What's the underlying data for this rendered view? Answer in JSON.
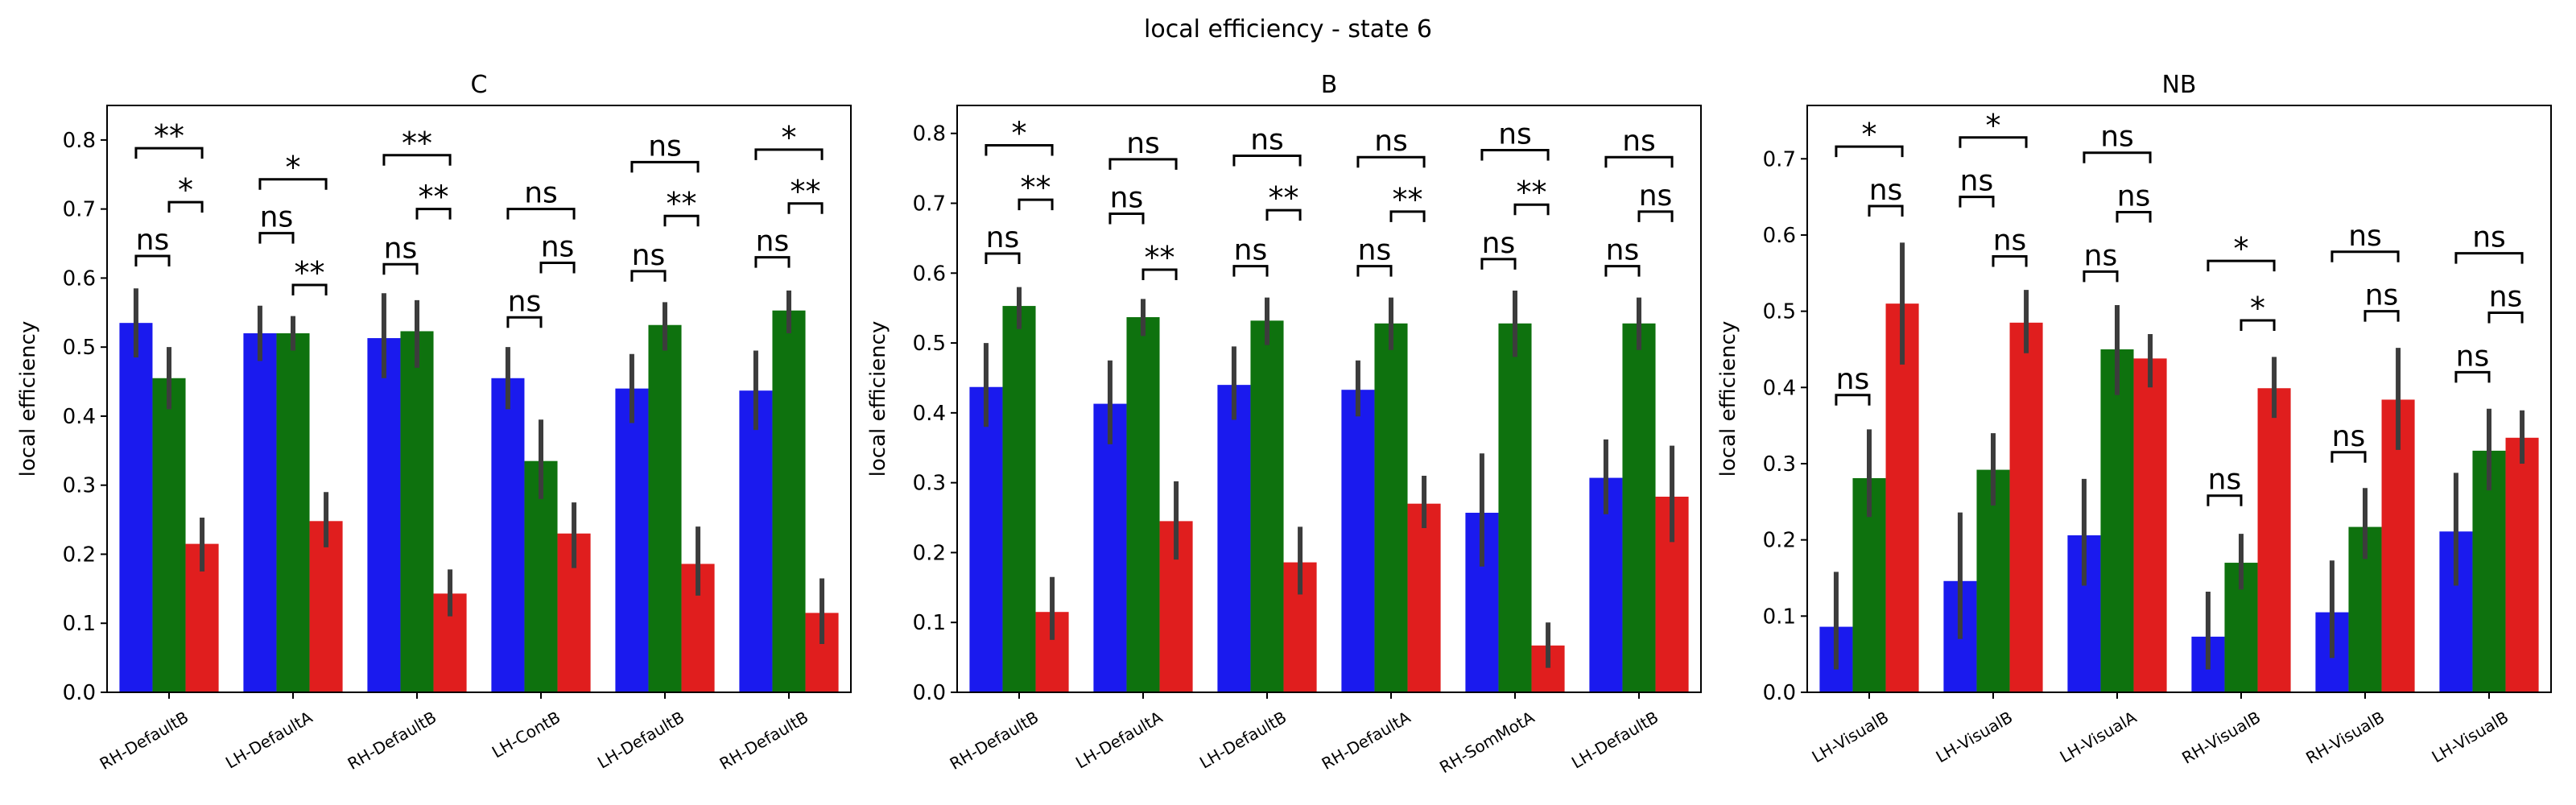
{
  "figure": {
    "title": "local efficiency - state 6"
  },
  "colors": {
    "series": [
      "#1a1aee",
      "#0e720e",
      "#e01e1e"
    ],
    "errorbar": "#3c3c3c",
    "axis": "#000000"
  },
  "chart_data": [
    {
      "type": "bar",
      "title": "C",
      "ylabel": "local efficiency",
      "ylim": [
        0,
        0.85
      ],
      "yticks": [
        0.0,
        0.1,
        0.2,
        0.3,
        0.4,
        0.5,
        0.6,
        0.7,
        0.8
      ],
      "categories": [
        "RH-DefaultB",
        "LH-DefaultA",
        "RH-DefaultB",
        "LH-ContB",
        "LH-DefaultB",
        "RH-DefaultB"
      ],
      "series": [
        {
          "values": [
            0.535,
            0.52,
            0.513,
            0.455,
            0.44,
            0.437
          ],
          "err_low": [
            0.485,
            0.48,
            0.455,
            0.41,
            0.39,
            0.38
          ],
          "err_high": [
            0.585,
            0.56,
            0.578,
            0.5,
            0.49,
            0.495
          ]
        },
        {
          "values": [
            0.455,
            0.52,
            0.523,
            0.335,
            0.532,
            0.553
          ],
          "err_low": [
            0.41,
            0.495,
            0.47,
            0.28,
            0.495,
            0.52
          ],
          "err_high": [
            0.5,
            0.545,
            0.568,
            0.395,
            0.565,
            0.582
          ]
        },
        {
          "values": [
            0.215,
            0.248,
            0.143,
            0.23,
            0.186,
            0.115
          ],
          "err_low": [
            0.175,
            0.21,
            0.11,
            0.18,
            0.14,
            0.07
          ],
          "err_high": [
            0.253,
            0.29,
            0.178,
            0.275,
            0.24,
            0.165
          ]
        }
      ],
      "significance": [
        {
          "group": 0,
          "from": 0,
          "to": 1,
          "label": "ns",
          "level": 0.632
        },
        {
          "group": 0,
          "from": 1,
          "to": 2,
          "label": "*",
          "level": 0.71
        },
        {
          "group": 0,
          "from": 0,
          "to": 2,
          "label": "**",
          "level": 0.788
        },
        {
          "group": 1,
          "from": 0,
          "to": 1,
          "label": "ns",
          "level": 0.665
        },
        {
          "group": 1,
          "from": 1,
          "to": 2,
          "label": "**",
          "level": 0.59
        },
        {
          "group": 1,
          "from": 0,
          "to": 2,
          "label": "*",
          "level": 0.743
        },
        {
          "group": 2,
          "from": 0,
          "to": 1,
          "label": "ns",
          "level": 0.62
        },
        {
          "group": 2,
          "from": 1,
          "to": 2,
          "label": "**",
          "level": 0.7
        },
        {
          "group": 2,
          "from": 0,
          "to": 2,
          "label": "**",
          "level": 0.778
        },
        {
          "group": 3,
          "from": 0,
          "to": 1,
          "label": "ns",
          "level": 0.543
        },
        {
          "group": 3,
          "from": 1,
          "to": 2,
          "label": "ns",
          "level": 0.622
        },
        {
          "group": 3,
          "from": 0,
          "to": 2,
          "label": "ns",
          "level": 0.7
        },
        {
          "group": 4,
          "from": 0,
          "to": 1,
          "label": "ns",
          "level": 0.61
        },
        {
          "group": 4,
          "from": 1,
          "to": 2,
          "label": "**",
          "level": 0.69
        },
        {
          "group": 4,
          "from": 0,
          "to": 2,
          "label": "ns",
          "level": 0.768
        },
        {
          "group": 5,
          "from": 0,
          "to": 1,
          "label": "ns",
          "level": 0.63
        },
        {
          "group": 5,
          "from": 1,
          "to": 2,
          "label": "**",
          "level": 0.708
        },
        {
          "group": 5,
          "from": 0,
          "to": 2,
          "label": "*",
          "level": 0.786
        }
      ]
    },
    {
      "type": "bar",
      "title": "B",
      "ylabel": "local efficiency",
      "ylim": [
        0,
        0.84
      ],
      "yticks": [
        0.0,
        0.1,
        0.2,
        0.3,
        0.4,
        0.5,
        0.6,
        0.7,
        0.8
      ],
      "categories": [
        "RH-DefaultB",
        "LH-DefaultA",
        "LH-DefaultB",
        "RH-DefaultA",
        "RH-SomMotA",
        "LH-DefaultB"
      ],
      "series": [
        {
          "values": [
            0.437,
            0.413,
            0.44,
            0.433,
            0.257,
            0.307
          ],
          "err_low": [
            0.38,
            0.355,
            0.39,
            0.395,
            0.18,
            0.255
          ],
          "err_high": [
            0.5,
            0.475,
            0.495,
            0.475,
            0.342,
            0.362
          ]
        },
        {
          "values": [
            0.553,
            0.537,
            0.532,
            0.528,
            0.528,
            0.528
          ],
          "err_low": [
            0.52,
            0.51,
            0.497,
            0.49,
            0.48,
            0.49
          ],
          "err_high": [
            0.58,
            0.563,
            0.565,
            0.565,
            0.575,
            0.565
          ]
        },
        {
          "values": [
            0.115,
            0.245,
            0.186,
            0.27,
            0.067,
            0.28
          ],
          "err_low": [
            0.075,
            0.19,
            0.14,
            0.235,
            0.035,
            0.215
          ],
          "err_high": [
            0.165,
            0.302,
            0.237,
            0.31,
            0.1,
            0.353
          ]
        }
      ],
      "significance": [
        {
          "group": 0,
          "from": 0,
          "to": 1,
          "label": "ns",
          "level": 0.628
        },
        {
          "group": 0,
          "from": 1,
          "to": 2,
          "label": "**",
          "level": 0.705
        },
        {
          "group": 0,
          "from": 0,
          "to": 2,
          "label": "*",
          "level": 0.783
        },
        {
          "group": 1,
          "from": 0,
          "to": 1,
          "label": "ns",
          "level": 0.685
        },
        {
          "group": 1,
          "from": 1,
          "to": 2,
          "label": "**",
          "level": 0.605
        },
        {
          "group": 1,
          "from": 0,
          "to": 2,
          "label": "ns",
          "level": 0.763
        },
        {
          "group": 2,
          "from": 0,
          "to": 1,
          "label": "ns",
          "level": 0.61
        },
        {
          "group": 2,
          "from": 1,
          "to": 2,
          "label": "**",
          "level": 0.69
        },
        {
          "group": 2,
          "from": 0,
          "to": 2,
          "label": "ns",
          "level": 0.768
        },
        {
          "group": 3,
          "from": 0,
          "to": 1,
          "label": "ns",
          "level": 0.61
        },
        {
          "group": 3,
          "from": 1,
          "to": 2,
          "label": "**",
          "level": 0.688
        },
        {
          "group": 3,
          "from": 0,
          "to": 2,
          "label": "ns",
          "level": 0.766
        },
        {
          "group": 4,
          "from": 0,
          "to": 1,
          "label": "ns",
          "level": 0.62
        },
        {
          "group": 4,
          "from": 1,
          "to": 2,
          "label": "**",
          "level": 0.698
        },
        {
          "group": 4,
          "from": 0,
          "to": 2,
          "label": "ns",
          "level": 0.776
        },
        {
          "group": 5,
          "from": 0,
          "to": 1,
          "label": "ns",
          "level": 0.61
        },
        {
          "group": 5,
          "from": 1,
          "to": 2,
          "label": "ns",
          "level": 0.688
        },
        {
          "group": 5,
          "from": 0,
          "to": 2,
          "label": "ns",
          "level": 0.766
        }
      ]
    },
    {
      "type": "bar",
      "title": "NB",
      "ylabel": "local efficiency",
      "ylim": [
        0,
        0.77
      ],
      "yticks": [
        0.0,
        0.1,
        0.2,
        0.3,
        0.4,
        0.5,
        0.6,
        0.7
      ],
      "categories": [
        "LH-VisualB",
        "LH-VisualB",
        "LH-VisualA",
        "RH-VisualB",
        "RH-VisualB",
        "LH-VisualB"
      ],
      "series": [
        {
          "values": [
            0.086,
            0.146,
            0.206,
            0.073,
            0.105,
            0.211
          ],
          "err_low": [
            0.03,
            0.07,
            0.14,
            0.03,
            0.045,
            0.14
          ],
          "err_high": [
            0.158,
            0.236,
            0.28,
            0.132,
            0.173,
            0.288
          ]
        },
        {
          "values": [
            0.281,
            0.292,
            0.45,
            0.17,
            0.217,
            0.317
          ],
          "err_low": [
            0.23,
            0.245,
            0.39,
            0.135,
            0.175,
            0.265
          ],
          "err_high": [
            0.345,
            0.34,
            0.508,
            0.208,
            0.268,
            0.372
          ]
        },
        {
          "values": [
            0.51,
            0.485,
            0.438,
            0.399,
            0.384,
            0.334
          ],
          "err_low": [
            0.43,
            0.445,
            0.4,
            0.36,
            0.318,
            0.3
          ],
          "err_high": [
            0.59,
            0.528,
            0.47,
            0.44,
            0.452,
            0.37
          ]
        }
      ],
      "significance": [
        {
          "group": 0,
          "from": 0,
          "to": 1,
          "label": "ns",
          "level": 0.39
        },
        {
          "group": 0,
          "from": 1,
          "to": 2,
          "label": "ns",
          "level": 0.638
        },
        {
          "group": 0,
          "from": 0,
          "to": 2,
          "label": "*",
          "level": 0.716
        },
        {
          "group": 1,
          "from": 0,
          "to": 1,
          "label": "ns",
          "level": 0.65
        },
        {
          "group": 1,
          "from": 1,
          "to": 2,
          "label": "ns",
          "level": 0.572
        },
        {
          "group": 1,
          "from": 0,
          "to": 2,
          "label": "*",
          "level": 0.728
        },
        {
          "group": 2,
          "from": 0,
          "to": 1,
          "label": "ns",
          "level": 0.552
        },
        {
          "group": 2,
          "from": 1,
          "to": 2,
          "label": "ns",
          "level": 0.63
        },
        {
          "group": 2,
          "from": 0,
          "to": 2,
          "label": "ns",
          "level": 0.708
        },
        {
          "group": 3,
          "from": 0,
          "to": 1,
          "label": "ns",
          "level": 0.258
        },
        {
          "group": 3,
          "from": 1,
          "to": 2,
          "label": "*",
          "level": 0.488
        },
        {
          "group": 3,
          "from": 0,
          "to": 2,
          "label": "*",
          "level": 0.566
        },
        {
          "group": 4,
          "from": 0,
          "to": 1,
          "label": "ns",
          "level": 0.315
        },
        {
          "group": 4,
          "from": 1,
          "to": 2,
          "label": "ns",
          "level": 0.5
        },
        {
          "group": 4,
          "from": 0,
          "to": 2,
          "label": "ns",
          "level": 0.578
        },
        {
          "group": 5,
          "from": 0,
          "to": 1,
          "label": "ns",
          "level": 0.42
        },
        {
          "group": 5,
          "from": 1,
          "to": 2,
          "label": "ns",
          "level": 0.498
        },
        {
          "group": 5,
          "from": 0,
          "to": 2,
          "label": "ns",
          "level": 0.576
        }
      ]
    }
  ]
}
